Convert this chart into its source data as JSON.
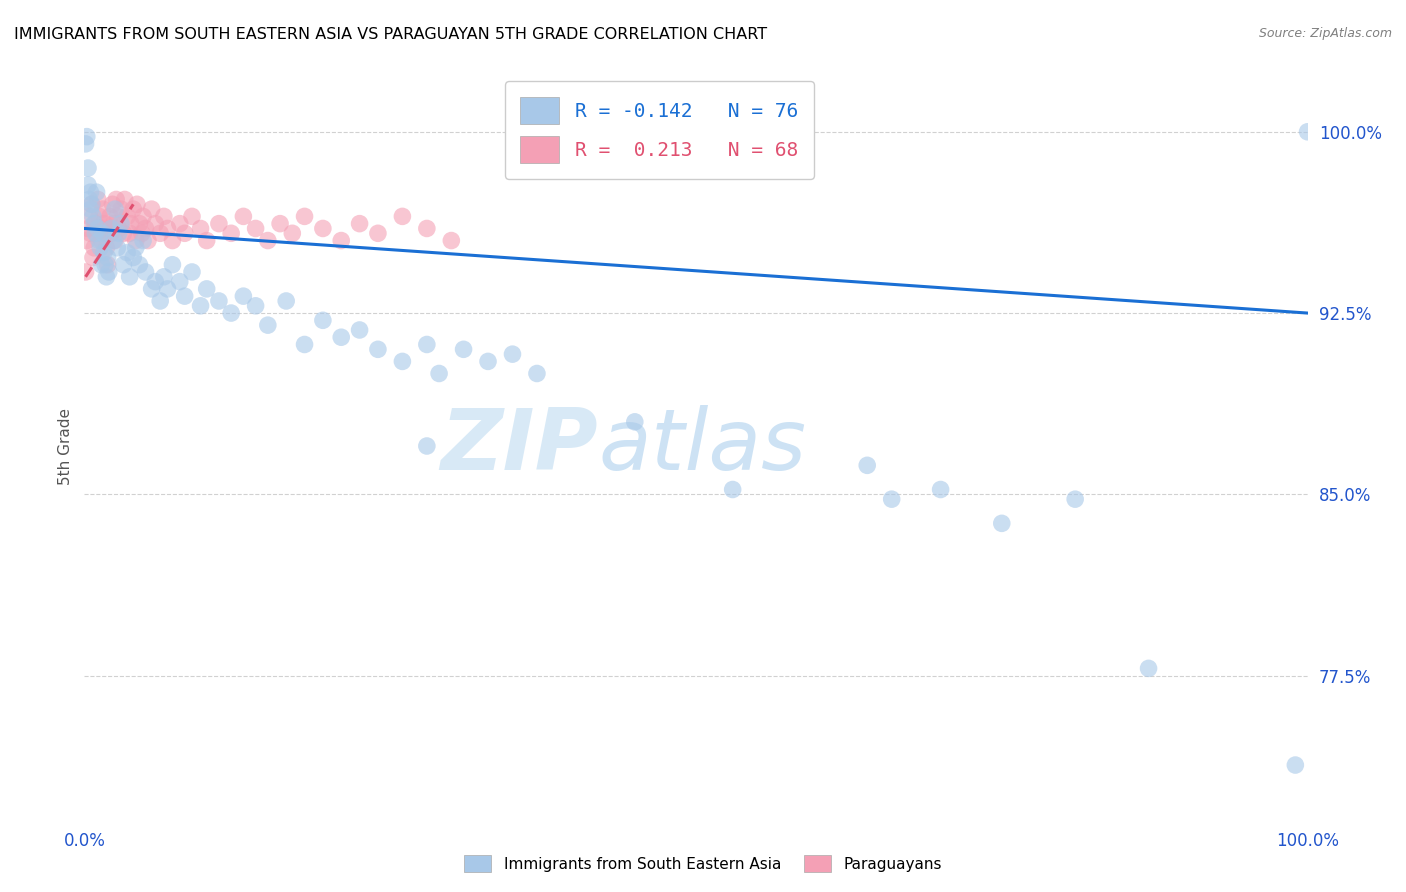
{
  "title": "IMMIGRANTS FROM SOUTH EASTERN ASIA VS PARAGUAYAN 5TH GRADE CORRELATION CHART",
  "source": "Source: ZipAtlas.com",
  "ylabel": "5th Grade",
  "legend_label_blue": "Immigrants from South Eastern Asia",
  "legend_label_pink": "Paraguayans",
  "R_blue": -0.142,
  "N_blue": 76,
  "R_pink": 0.213,
  "N_pink": 68,
  "xmin": 0.0,
  "xmax": 1.0,
  "ymin": 0.715,
  "ymax": 1.025,
  "yticks": [
    0.775,
    0.85,
    0.925,
    1.0
  ],
  "ytick_labels": [
    "77.5%",
    "85.0%",
    "92.5%",
    "100.0%"
  ],
  "xtick_labels": [
    "0.0%",
    "100.0%"
  ],
  "blue_color": "#a8c8e8",
  "pink_color": "#f4a0b5",
  "line_blue": "#1a6fd4",
  "line_pink": "#e05070",
  "watermark_zip": "ZIP",
  "watermark_atlas": "atlas",
  "blue_scatter_x": [
    0.001,
    0.002,
    0.003,
    0.003,
    0.004,
    0.005,
    0.005,
    0.006,
    0.007,
    0.008,
    0.009,
    0.01,
    0.011,
    0.012,
    0.013,
    0.014,
    0.015,
    0.016,
    0.017,
    0.018,
    0.019,
    0.02,
    0.022,
    0.024,
    0.025,
    0.027,
    0.028,
    0.03,
    0.032,
    0.035,
    0.037,
    0.04,
    0.042,
    0.045,
    0.048,
    0.05,
    0.055,
    0.058,
    0.062,
    0.065,
    0.068,
    0.072,
    0.078,
    0.082,
    0.088,
    0.095,
    0.1,
    0.11,
    0.12,
    0.13,
    0.14,
    0.15,
    0.165,
    0.18,
    0.195,
    0.21,
    0.225,
    0.24,
    0.26,
    0.28,
    0.29,
    0.31,
    0.33,
    0.35,
    0.37,
    0.28,
    0.45,
    0.53,
    0.64,
    0.66,
    0.7,
    0.75,
    0.81,
    0.87,
    0.99,
    1.0
  ],
  "blue_scatter_y": [
    0.995,
    0.998,
    0.978,
    0.985,
    0.972,
    0.968,
    0.975,
    0.97,
    0.965,
    0.962,
    0.958,
    0.975,
    0.96,
    0.955,
    0.952,
    0.945,
    0.958,
    0.95,
    0.945,
    0.94,
    0.948,
    0.942,
    0.96,
    0.955,
    0.968,
    0.952,
    0.958,
    0.962,
    0.945,
    0.95,
    0.94,
    0.948,
    0.952,
    0.945,
    0.955,
    0.942,
    0.935,
    0.938,
    0.93,
    0.94,
    0.935,
    0.945,
    0.938,
    0.932,
    0.942,
    0.928,
    0.935,
    0.93,
    0.925,
    0.932,
    0.928,
    0.92,
    0.93,
    0.912,
    0.922,
    0.915,
    0.918,
    0.91,
    0.905,
    0.912,
    0.9,
    0.91,
    0.905,
    0.908,
    0.9,
    0.87,
    0.88,
    0.852,
    0.862,
    0.848,
    0.852,
    0.838,
    0.848,
    0.778,
    0.738,
    1.0
  ],
  "pink_scatter_x": [
    0.001,
    0.002,
    0.003,
    0.004,
    0.005,
    0.006,
    0.007,
    0.008,
    0.009,
    0.01,
    0.011,
    0.012,
    0.013,
    0.014,
    0.015,
    0.016,
    0.017,
    0.018,
    0.019,
    0.02,
    0.021,
    0.022,
    0.023,
    0.024,
    0.025,
    0.026,
    0.027,
    0.028,
    0.03,
    0.032,
    0.033,
    0.035,
    0.037,
    0.038,
    0.04,
    0.042,
    0.043,
    0.045,
    0.047,
    0.048,
    0.05,
    0.052,
    0.055,
    0.058,
    0.062,
    0.065,
    0.068,
    0.072,
    0.078,
    0.082,
    0.088,
    0.095,
    0.1,
    0.11,
    0.12,
    0.13,
    0.14,
    0.15,
    0.16,
    0.17,
    0.18,
    0.195,
    0.21,
    0.225,
    0.24,
    0.26,
    0.28,
    0.3
  ],
  "pink_scatter_y": [
    0.942,
    0.955,
    0.96,
    0.965,
    0.958,
    0.97,
    0.948,
    0.952,
    0.962,
    0.958,
    0.972,
    0.965,
    0.96,
    0.955,
    0.968,
    0.962,
    0.958,
    0.952,
    0.945,
    0.96,
    0.965,
    0.958,
    0.97,
    0.962,
    0.955,
    0.972,
    0.965,
    0.96,
    0.968,
    0.958,
    0.972,
    0.965,
    0.958,
    0.962,
    0.968,
    0.955,
    0.97,
    0.962,
    0.958,
    0.965,
    0.96,
    0.955,
    0.968,
    0.962,
    0.958,
    0.965,
    0.96,
    0.955,
    0.962,
    0.958,
    0.965,
    0.96,
    0.955,
    0.962,
    0.958,
    0.965,
    0.96,
    0.955,
    0.962,
    0.958,
    0.965,
    0.96,
    0.955,
    0.962,
    0.958,
    0.965,
    0.96,
    0.955
  ],
  "line_blue_x0": 0.0,
  "line_blue_x1": 1.0,
  "line_blue_y0": 0.96,
  "line_blue_y1": 0.925,
  "line_pink_x0": 0.001,
  "line_pink_x1": 0.04,
  "line_pink_y0": 0.94,
  "line_pink_y1": 0.97
}
